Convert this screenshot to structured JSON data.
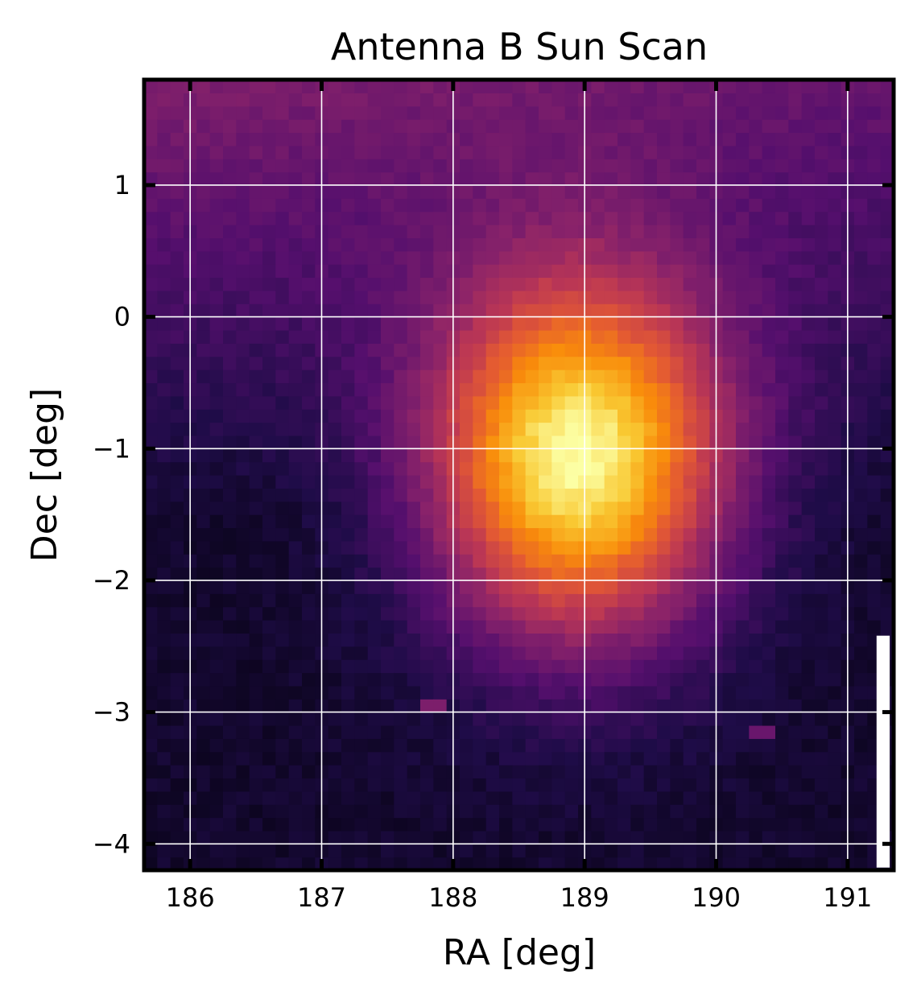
{
  "chart_data": {
    "type": "heatmap",
    "title": "Antenna B Sun Scan",
    "xlabel": "RA [deg]",
    "ylabel": "Dec [deg]",
    "xlim": [
      185.65,
      191.35
    ],
    "ylim": [
      -4.2,
      1.8
    ],
    "xticks": [
      {
        "value": 186,
        "label": "186"
      },
      {
        "value": 187,
        "label": "187"
      },
      {
        "value": 188,
        "label": "188"
      },
      {
        "value": 189,
        "label": "189"
      },
      {
        "value": 190,
        "label": "190"
      },
      {
        "value": 191,
        "label": "191"
      }
    ],
    "yticks": [
      {
        "value": 1,
        "label": "1"
      },
      {
        "value": 0,
        "label": "0"
      },
      {
        "value": -1,
        "label": "−1"
      },
      {
        "value": -2,
        "label": "−2"
      },
      {
        "value": -3,
        "label": "−3"
      },
      {
        "value": -4,
        "label": "−4"
      }
    ],
    "grid": true,
    "colormap": "inferno",
    "peak": {
      "ra": 188.95,
      "dec": -1.05,
      "relative_intensity": 1.0
    },
    "beam_width": {
      "sigma_ra_deg": 0.78,
      "sigma_dec_deg": 0.95
    },
    "background_level": 0.08,
    "secondary_features": [
      {
        "ra": 187.85,
        "dec": -2.95,
        "relative_intensity": 0.35
      },
      {
        "ra": 190.35,
        "dec": -3.12,
        "relative_intensity": 0.3
      }
    ],
    "masked_region": {
      "ra_range": [
        191.22,
        191.32
      ],
      "dec_range": [
        -4.18,
        -2.42
      ]
    }
  }
}
